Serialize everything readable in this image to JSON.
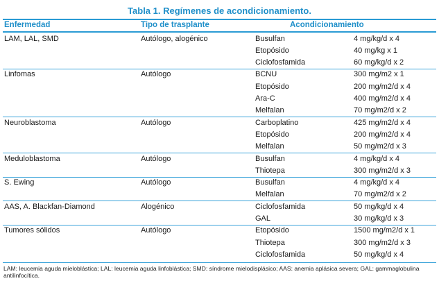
{
  "title": "Tabla 1. Regímenes de acondicionamiento.",
  "headers": [
    "Enfermedad",
    "Tipo de trasplante",
    "Acondicionamiento"
  ],
  "groups": [
    {
      "disease": "LAM, LAL, SMD",
      "type": "Autólogo, alogénico",
      "rows": [
        {
          "drug": "Busulfan",
          "dose": "4 mg/kg/d x 4"
        },
        {
          "drug": "Etopósido",
          "dose": "40 mg/kg x 1"
        },
        {
          "drug": "Ciclofosfamida",
          "dose": "60 mg/kg/d x 2"
        }
      ]
    },
    {
      "disease": "Linfomas",
      "type": "Autólogo",
      "rows": [
        {
          "drug": "BCNU",
          "dose": "300 mg/m2 x 1"
        },
        {
          "drug": "Etopósido",
          "dose": "200 mg/m2/d x 4"
        },
        {
          "drug": "Ara-C",
          "dose": "400 mg/m2/d x 4"
        },
        {
          "drug": "Melfalan",
          "dose": "70 mg/m2/d x 2"
        }
      ]
    },
    {
      "disease": "Neuroblastoma",
      "type": "Autólogo",
      "rows": [
        {
          "drug": "Carboplatino",
          "dose": "425 mg/m2/d x 4"
        },
        {
          "drug": "Etopósido",
          "dose": "200 mg/m2/d x 4"
        },
        {
          "drug": "Melfalan",
          "dose": "50 mg/m2/d x 3"
        }
      ]
    },
    {
      "disease": "Meduloblastoma",
      "type": "Autólogo",
      "rows": [
        {
          "drug": "Busulfan",
          "dose": "4 mg/kg/d x 4"
        },
        {
          "drug": "Thiotepa",
          "dose": "300 mg/m2/d x 3"
        }
      ]
    },
    {
      "disease": "S. Ewing",
      "type": "Autólogo",
      "rows": [
        {
          "drug": "Busulfan",
          "dose": "4 mg/kg/d x 4"
        },
        {
          "drug": "Melfalan",
          "dose": "70 mg/m2/d x 2"
        }
      ]
    },
    {
      "disease": "AAS, A. Blackfan-Diamond",
      "type": "Alogénico",
      "rows": [
        {
          "drug": "Ciclofosfamida",
          "dose": "50 mg/kg/d x 4"
        },
        {
          "drug": "GAL",
          "dose": "30 mg/kg/d x 3"
        }
      ]
    },
    {
      "disease": "Tumores sólidos",
      "type": "Autólogo",
      "rows": [
        {
          "drug": "Etopósido",
          "dose": "1500 mg/m2/d x 1"
        },
        {
          "drug": "Thiotepa",
          "dose": "300 mg/m2/d x 3"
        },
        {
          "drug": "Ciclofosfamida",
          "dose": "50 mg/kg/d x 4"
        }
      ]
    }
  ],
  "footnote": "LAM: leucemia aguda mieloblástica; LAL: leucemia aguda linfoblástica; SMD: síndrome mielodisplásico; AAS: anemia aplásica severa; GAL: gammaglobulina antilinfocítica.",
  "colors": {
    "accent": "#1f8fc9",
    "rule": "#3aa3da"
  }
}
